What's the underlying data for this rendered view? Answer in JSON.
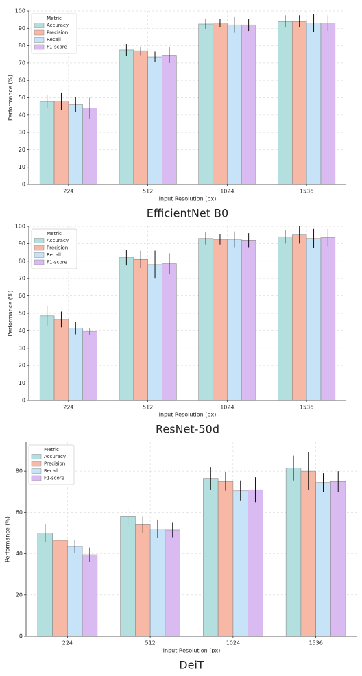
{
  "chart_data": [
    {
      "type": "bar",
      "title": "EfficientNet B0",
      "x_label": "Input Resolution (px)",
      "y_label": "Performance (%)",
      "legend_title": "Metric",
      "legend": "upper left",
      "grid": true,
      "categories": [
        "224",
        "512",
        "1024",
        "1536"
      ],
      "ylim": [
        0,
        100
      ],
      "yticks": [
        0,
        10,
        20,
        30,
        40,
        50,
        60,
        70,
        80,
        90,
        100
      ],
      "series": [
        {
          "name": "Accuracy",
          "color": "#b3dfdf",
          "values": [
            47.8,
            77.5,
            92.5,
            94
          ],
          "errors": [
            4,
            3.5,
            3,
            3.5
          ]
        },
        {
          "name": "Precision",
          "color": "#f8b8a6",
          "values": [
            48,
            77,
            93,
            94
          ],
          "errors": [
            5,
            2.5,
            2.5,
            3.5
          ]
        },
        {
          "name": "Recall",
          "color": "#c6e3f8",
          "values": [
            46,
            73.5,
            92,
            93
          ],
          "errors": [
            4.5,
            3,
            4.5,
            5
          ]
        },
        {
          "name": "F1-score",
          "color": "#d9bbf2",
          "values": [
            44,
            74.5,
            92,
            93
          ],
          "errors": [
            6,
            4.5,
            3.5,
            4.5
          ]
        }
      ]
    },
    {
      "type": "bar",
      "title": "ResNet-50d",
      "x_label": "Input Resolution (px)",
      "y_label": "Performance (%)",
      "legend_title": "Metric",
      "legend": "upper left",
      "grid": true,
      "categories": [
        "224",
        "512",
        "1024",
        "1536"
      ],
      "ylim": [
        0,
        100
      ],
      "yticks": [
        0,
        10,
        20,
        30,
        40,
        50,
        60,
        70,
        80,
        90,
        100
      ],
      "series": [
        {
          "name": "Accuracy",
          "color": "#b3dfdf",
          "values": [
            48.5,
            82,
            93,
            94
          ],
          "errors": [
            5.5,
            4.5,
            3.5,
            4
          ]
        },
        {
          "name": "Precision",
          "color": "#f8b8a6",
          "values": [
            46.5,
            81,
            92.5,
            95
          ],
          "errors": [
            4.5,
            5,
            3,
            5
          ]
        },
        {
          "name": "Recall",
          "color": "#c6e3f8",
          "values": [
            41.5,
            78,
            92.5,
            93
          ],
          "errors": [
            3.5,
            8,
            4.5,
            5.5
          ]
        },
        {
          "name": "F1-score",
          "color": "#d9bbf2",
          "values": [
            39.5,
            78.5,
            92,
            93.5
          ],
          "errors": [
            2,
            6,
            4,
            5
          ]
        }
      ]
    },
    {
      "type": "bar",
      "title": "DeiT",
      "x_label": "Input Resolution (px)",
      "y_label": "Performance (%)",
      "legend_title": "Metric",
      "legend": "upper left",
      "grid": true,
      "categories": [
        "224",
        "512",
        "1024",
        "1536"
      ],
      "ylim": [
        0,
        94
      ],
      "yticks": [
        0,
        20,
        40,
        60,
        80
      ],
      "series": [
        {
          "name": "Accuracy",
          "color": "#b3dfdf",
          "values": [
            50,
            58,
            76.5,
            81.5
          ],
          "errors": [
            4.5,
            4,
            5.5,
            6
          ]
        },
        {
          "name": "Precision",
          "color": "#f8b8a6",
          "values": [
            46.5,
            54,
            75,
            80
          ],
          "errors": [
            10,
            4,
            4.5,
            9
          ]
        },
        {
          "name": "Recall",
          "color": "#c6e3f8",
          "values": [
            43.5,
            52,
            70.5,
            74.5
          ],
          "errors": [
            3,
            4.5,
            5,
            4.5
          ]
        },
        {
          "name": "F1-score",
          "color": "#d9bbf2",
          "values": [
            39.5,
            51.5,
            71,
            75
          ],
          "errors": [
            3.5,
            3.5,
            6,
            5
          ]
        }
      ]
    }
  ]
}
